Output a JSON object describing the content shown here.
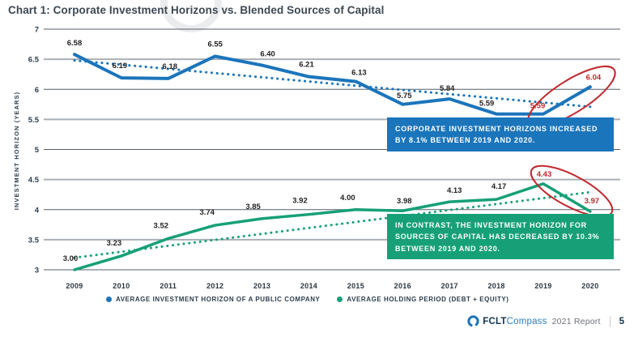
{
  "title": "Chart 1: Corporate Investment Horizons vs. Blended Sources of Capital",
  "colors": {
    "series_blue": "#1b75bb",
    "series_green": "#17a077",
    "highlight_red": "#c1272d",
    "callout_blue_bg": "#1b75bb",
    "callout_green_bg": "#17a077",
    "axis_text": "#2c3e4c",
    "label_text": "#231f20"
  },
  "chart_data": {
    "type": "line",
    "title": "Chart 1: Corporate Investment Horizons vs. Blended Sources of Capital",
    "xlabel": "",
    "ylabel": "INVESTMENT HORIZON (YEARS)",
    "ylim": [
      3,
      7
    ],
    "grid": true,
    "legend_position": "bottom",
    "categories": [
      "2009",
      "2010",
      "2011",
      "2012",
      "2013",
      "2014",
      "2015",
      "2016",
      "2017",
      "2018",
      "2019",
      "2020"
    ],
    "yticks": [
      "7",
      "6.5",
      "6",
      "5.5",
      "5",
      "4.5",
      "4",
      "3.5",
      "3"
    ],
    "series": [
      {
        "name": "AVERAGE INVESTMENT HORIZON OF A PUBLIC COMPANY",
        "color": "#1b75bb",
        "style": "solid",
        "values": [
          6.58,
          6.19,
          6.18,
          6.55,
          6.4,
          6.21,
          6.13,
          5.75,
          5.84,
          5.59,
          5.59,
          6.04
        ],
        "labels": [
          "6.58",
          "6.19",
          "6.18",
          "6.55",
          "6.40",
          "6.21",
          "6.13",
          "5.75",
          "5.84",
          "5.59",
          "5.59",
          "6.04"
        ],
        "red_label_indices": [
          10,
          11
        ],
        "label_offsets": [
          [
            0,
            -11
          ],
          [
            -2,
            -12
          ],
          [
            2,
            -12
          ],
          [
            0,
            -12
          ],
          [
            7,
            -11
          ],
          [
            -3,
            -12
          ],
          [
            4,
            -8
          ],
          [
            2,
            -8
          ],
          [
            -3,
            -10
          ],
          [
            -12,
            -10
          ],
          [
            -7,
            -7
          ],
          [
            4,
            -9
          ]
        ],
        "trend": {
          "style": "dotted",
          "start": 6.48,
          "end": 5.71
        }
      },
      {
        "name": "AVERAGE HOLDING PERIOD (DEBT + EQUITY)",
        "color": "#17a077",
        "style": "solid",
        "values": [
          3.0,
          3.23,
          3.52,
          3.74,
          3.85,
          3.92,
          4.0,
          3.98,
          4.13,
          4.17,
          4.43,
          3.97
        ],
        "labels": [
          "3.00",
          "3.23",
          "3.52",
          "3.74",
          "3.85",
          "3.92",
          "4.00",
          "3.98",
          "4.13",
          "4.17",
          "4.43",
          "3.97"
        ],
        "red_label_indices": [
          10,
          11
        ],
        "label_offsets": [
          [
            -5,
            -11
          ],
          [
            -9,
            -13
          ],
          [
            -9,
            -13
          ],
          [
            -10,
            -13
          ],
          [
            -11,
            -12
          ],
          [
            -11,
            -14
          ],
          [
            -10,
            -12
          ],
          [
            2,
            -9
          ],
          [
            6,
            -11
          ],
          [
            3,
            -13
          ],
          [
            1,
            -9
          ],
          [
            2,
            -10
          ]
        ],
        "trend": {
          "style": "dotted",
          "start": 3.2,
          "end": 4.29
        }
      }
    ],
    "annotations": {
      "callouts": [
        {
          "text": "CORPORATE INVESTMENT HORIZONS INCREASED BY 8.1% BETWEEN 2019 AND 2020.",
          "bg": "#1b75bb"
        },
        {
          "text": "IN CONTRAST, THE INVESTMENT HORIZON FOR SOURCES OF CAPITAL HAS DECREASED BY 10.3% BETWEEN 2019 AND 2020.",
          "bg": "#17a077"
        }
      ],
      "ellipses": [
        {
          "cx": 706,
          "cy": 119,
          "rx": 62,
          "ry": 20,
          "rotate": -32,
          "color": "#c1272d"
        },
        {
          "cx": 706,
          "cy": 236,
          "rx": 56,
          "ry": 19,
          "rotate": 28,
          "color": "#c1272d"
        }
      ]
    }
  },
  "legend": {
    "items": [
      {
        "label": "AVERAGE INVESTMENT HORIZON OF A PUBLIC COMPANY",
        "color": "#1b75bb"
      },
      {
        "label": "AVERAGE HOLDING PERIOD (DEBT + EQUITY)",
        "color": "#17a077"
      }
    ]
  },
  "footer": {
    "brand_bold": "FCLT",
    "brand_light": "Compass",
    "report": "2021 Report",
    "page": "5"
  }
}
